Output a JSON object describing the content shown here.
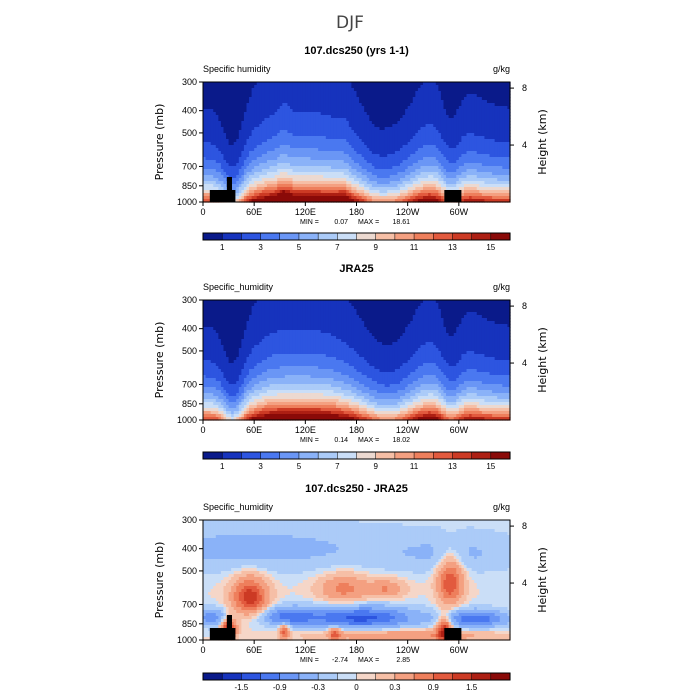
{
  "page": {
    "suptitle": "DJF",
    "units_label": "g/kg"
  },
  "colors": {
    "humidity": [
      "#0a1a8a",
      "#1633bd",
      "#2d55e0",
      "#4a78f0",
      "#6a96f5",
      "#8ab2f8",
      "#abcbf8",
      "#cadef7",
      "#ecd9d0",
      "#f6bfa6",
      "#f4a081",
      "#ee7f5c",
      "#e25a3e",
      "#cc3a24",
      "#ad1f13",
      "#8a0a08"
    ],
    "diff": [
      "#0a1a8a",
      "#1633bd",
      "#2d55e0",
      "#4a78f0",
      "#6a96f5",
      "#8ab2f8",
      "#abcbf8",
      "#cadef7",
      "#f5d6c8",
      "#f6bfa6",
      "#f4a081",
      "#ee7f5c",
      "#e25a3e",
      "#cc3a24",
      "#ad1f13",
      "#8a0a08"
    ],
    "land": "#000000"
  },
  "chart_data": [
    {
      "type": "heatmap",
      "title": "107.dcs250 (yrs 1-1)",
      "left_label": "Specific humidity",
      "right_label": "g/kg",
      "ylabel": "Pressure (mb)",
      "ylabel_right": "Height (km)",
      "pressure_ticks": [
        "300",
        "400",
        "500",
        "700",
        "850",
        "1000"
      ],
      "pressure_values": [
        300,
        400,
        500,
        700,
        850,
        1000
      ],
      "height_ticks": [
        "8",
        "4"
      ],
      "height_values": [
        8,
        4
      ],
      "lon_ticks": [
        "0",
        "60E",
        "120E",
        "180",
        "120W",
        "60W"
      ],
      "lon_values": [
        0,
        60,
        120,
        180,
        240,
        300
      ],
      "xlim": [
        0,
        360
      ],
      "ylim": [
        1000,
        300
      ],
      "stats": {
        "min_label": "MIN =",
        "min": "0.07",
        "max_label": "MAX =",
        "max": "18.61"
      },
      "colorbar_ticks": [
        "1",
        "3",
        "5",
        "7",
        "9",
        "11",
        "13",
        "15"
      ],
      "colorbar_levels": [
        0,
        1,
        2,
        3,
        4,
        5,
        6,
        7,
        8,
        9,
        10,
        11,
        12,
        13,
        14,
        15,
        16
      ],
      "colorbar_tick_levels": [
        1,
        3,
        5,
        7,
        9,
        11,
        13,
        15
      ]
    },
    {
      "type": "heatmap",
      "title": "JRA25",
      "left_label": "Specific_humidity",
      "right_label": "g/kg",
      "ylabel": "Pressure (mb)",
      "ylabel_right": "Height (km)",
      "pressure_ticks": [
        "300",
        "400",
        "500",
        "700",
        "850",
        "1000"
      ],
      "pressure_values": [
        300,
        400,
        500,
        700,
        850,
        1000
      ],
      "height_ticks": [
        "8",
        "4"
      ],
      "height_values": [
        8,
        4
      ],
      "lon_ticks": [
        "0",
        "60E",
        "120E",
        "180",
        "120W",
        "60W"
      ],
      "lon_values": [
        0,
        60,
        120,
        180,
        240,
        300
      ],
      "xlim": [
        0,
        360
      ],
      "ylim": [
        1000,
        300
      ],
      "stats": {
        "min_label": "MIN =",
        "min": "0.14",
        "max_label": "MAX =",
        "max": "18.02"
      },
      "colorbar_ticks": [
        "1",
        "3",
        "5",
        "7",
        "9",
        "11",
        "13",
        "15"
      ],
      "colorbar_levels": [
        0,
        1,
        2,
        3,
        4,
        5,
        6,
        7,
        8,
        9,
        10,
        11,
        12,
        13,
        14,
        15,
        16
      ],
      "colorbar_tick_levels": [
        1,
        3,
        5,
        7,
        9,
        11,
        13,
        15
      ]
    },
    {
      "type": "heatmap",
      "title": "107.dcs250 - JRA25",
      "left_label": "Specific_humidity",
      "right_label": "g/kg",
      "ylabel": "Pressure (mb)",
      "ylabel_right": "Height (km)",
      "pressure_ticks": [
        "300",
        "400",
        "500",
        "700",
        "850",
        "1000"
      ],
      "pressure_values": [
        300,
        400,
        500,
        700,
        850,
        1000
      ],
      "height_ticks": [
        "8",
        "4"
      ],
      "height_values": [
        8,
        4
      ],
      "lon_ticks": [
        "0",
        "60E",
        "120E",
        "180",
        "120W",
        "60W"
      ],
      "lon_values": [
        0,
        60,
        120,
        180,
        240,
        300
      ],
      "xlim": [
        0,
        360
      ],
      "ylim": [
        1000,
        300
      ],
      "stats": {
        "min_label": "MIN =",
        "min": "-2.74",
        "max_label": "MAX =",
        "max": "2.85"
      },
      "colorbar_ticks": [
        "-1.5",
        "-0.9",
        "-0.3",
        "0",
        "0.3",
        "0.9",
        "1.5"
      ],
      "colorbar_levels": [
        -2.1,
        -1.8,
        -1.5,
        -1.2,
        -0.9,
        -0.6,
        -0.3,
        -0.1,
        0,
        0.1,
        0.3,
        0.6,
        0.9,
        1.2,
        1.5,
        1.8,
        2.1
      ],
      "colorbar_tick_levels": [
        -1.5,
        -0.9,
        -0.3,
        0,
        0.3,
        0.9,
        1.5
      ]
    }
  ]
}
